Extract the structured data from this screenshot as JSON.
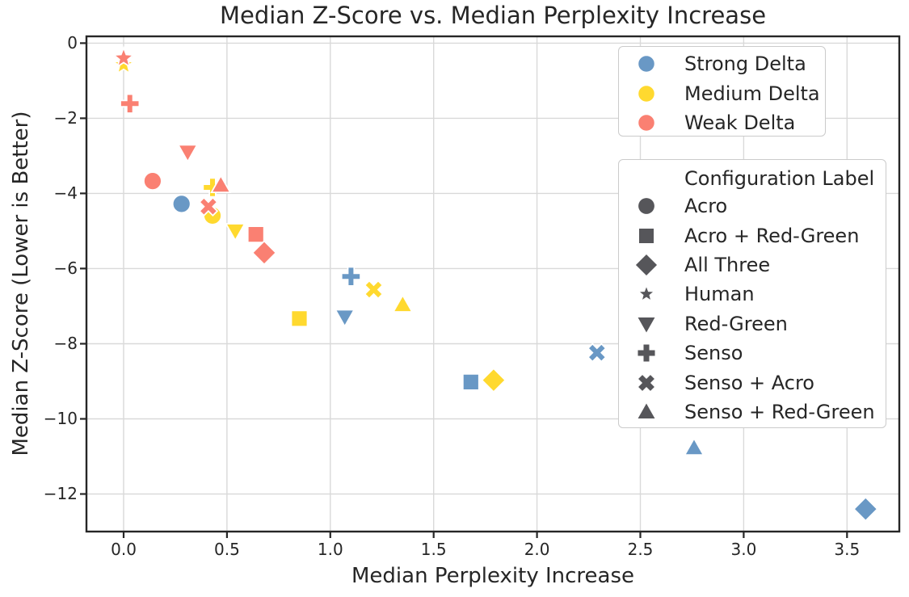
{
  "figure": {
    "background": "#ffffff",
    "text_color": "#262626"
  },
  "chart_data": {
    "type": "scatter",
    "title": "Median Z-Score vs. Median Perplexity Increase",
    "xlabel": "Median Perplexity Increase",
    "ylabel": "Median Z-Score (Lower is Better)",
    "xlim": [
      -0.18,
      3.753
    ],
    "ylim": [
      -13.0,
      0.18
    ],
    "grid": true,
    "grid_color": "#d9d9d9",
    "fg_color": "#262626",
    "xticks": {
      "values": [
        0,
        0.5,
        1,
        1.5,
        2,
        2.5,
        3,
        3.5
      ],
      "labels": [
        "0.0",
        "0.5",
        "1.0",
        "1.5",
        "2.0",
        "2.5",
        "3.0",
        "3.5"
      ]
    },
    "yticks": {
      "values": [
        0,
        -2,
        -4,
        -6,
        -8,
        -10,
        -12
      ],
      "labels": [
        "0",
        "−2",
        "−4",
        "−6",
        "−8",
        "−10",
        "−12"
      ]
    },
    "hue_legend": {
      "items": [
        {
          "label": "Strong Delta",
          "color": "#6998c5"
        },
        {
          "label": "Medium Delta",
          "color": "#ffd92f"
        },
        {
          "label": "Weak Delta",
          "color": "#fa8072"
        }
      ]
    },
    "style_legend": {
      "title": "Configuration Label",
      "marker_color": "#56565a",
      "items": [
        {
          "label": "Acro",
          "marker": "circle"
        },
        {
          "label": "Acro + Red-Green",
          "marker": "square"
        },
        {
          "label": "All Three",
          "marker": "diamond"
        },
        {
          "label": "Human",
          "marker": "star"
        },
        {
          "label": "Red-Green",
          "marker": "triangle-down"
        },
        {
          "label": "Senso",
          "marker": "plus"
        },
        {
          "label": "Senso + Acro",
          "marker": "x"
        },
        {
          "label": "Senso + Red-Green",
          "marker": "triangle-up"
        }
      ]
    },
    "series": [
      {
        "name": "Strong Delta",
        "color": "#6998c5",
        "points": [
          {
            "label": "Human",
            "marker": "star",
            "x": 0.0,
            "y": -0.44
          },
          {
            "label": "Acro",
            "marker": "circle",
            "x": 0.28,
            "y": -4.28
          },
          {
            "label": "Senso",
            "marker": "plus",
            "x": 1.1,
            "y": -6.21
          },
          {
            "label": "Red-Green",
            "marker": "triangle-down",
            "x": 1.07,
            "y": -7.29
          },
          {
            "label": "Senso + Acro",
            "marker": "x",
            "x": 2.29,
            "y": -8.24
          },
          {
            "label": "Acro + Red-Green",
            "marker": "square",
            "x": 1.68,
            "y": -9.02
          },
          {
            "label": "Senso + Red-Green",
            "marker": "triangle-up",
            "x": 2.76,
            "y": -10.77
          },
          {
            "label": "All Three",
            "marker": "diamond",
            "x": 3.59,
            "y": -12.4
          }
        ]
      },
      {
        "name": "Medium Delta",
        "color": "#ffd92f",
        "points": [
          {
            "label": "Human",
            "marker": "star",
            "x": 0.0,
            "y": -0.58
          },
          {
            "label": "Senso",
            "marker": "plus",
            "x": 0.43,
            "y": -3.84
          },
          {
            "label": "Acro",
            "marker": "circle",
            "x": 0.43,
            "y": -4.59
          },
          {
            "label": "Red-Green",
            "marker": "triangle-down",
            "x": 0.54,
            "y": -5.0
          },
          {
            "label": "Senso + Acro",
            "marker": "x",
            "x": 1.21,
            "y": -6.56
          },
          {
            "label": "Senso + Red-Green",
            "marker": "triangle-up",
            "x": 1.35,
            "y": -6.96
          },
          {
            "label": "Acro + Red-Green",
            "marker": "square",
            "x": 0.85,
            "y": -7.33
          },
          {
            "label": "All Three",
            "marker": "diamond",
            "x": 1.79,
            "y": -8.97
          }
        ]
      },
      {
        "name": "Weak Delta",
        "color": "#fa8072",
        "points": [
          {
            "label": "Human",
            "marker": "star",
            "x": 0.0,
            "y": -0.4
          },
          {
            "label": "Senso",
            "marker": "plus",
            "x": 0.03,
            "y": -1.61
          },
          {
            "label": "Red-Green",
            "marker": "triangle-down",
            "x": 0.31,
            "y": -2.9
          },
          {
            "label": "Acro",
            "marker": "circle",
            "x": 0.14,
            "y": -3.67
          },
          {
            "label": "Senso + Red-Green",
            "marker": "triangle-up",
            "x": 0.47,
            "y": -3.78
          },
          {
            "label": "Senso + Acro",
            "marker": "x",
            "x": 0.41,
            "y": -4.35
          },
          {
            "label": "Acro + Red-Green",
            "marker": "square",
            "x": 0.64,
            "y": -5.09
          },
          {
            "label": "All Three",
            "marker": "diamond",
            "x": 0.68,
            "y": -5.58
          }
        ]
      }
    ]
  }
}
